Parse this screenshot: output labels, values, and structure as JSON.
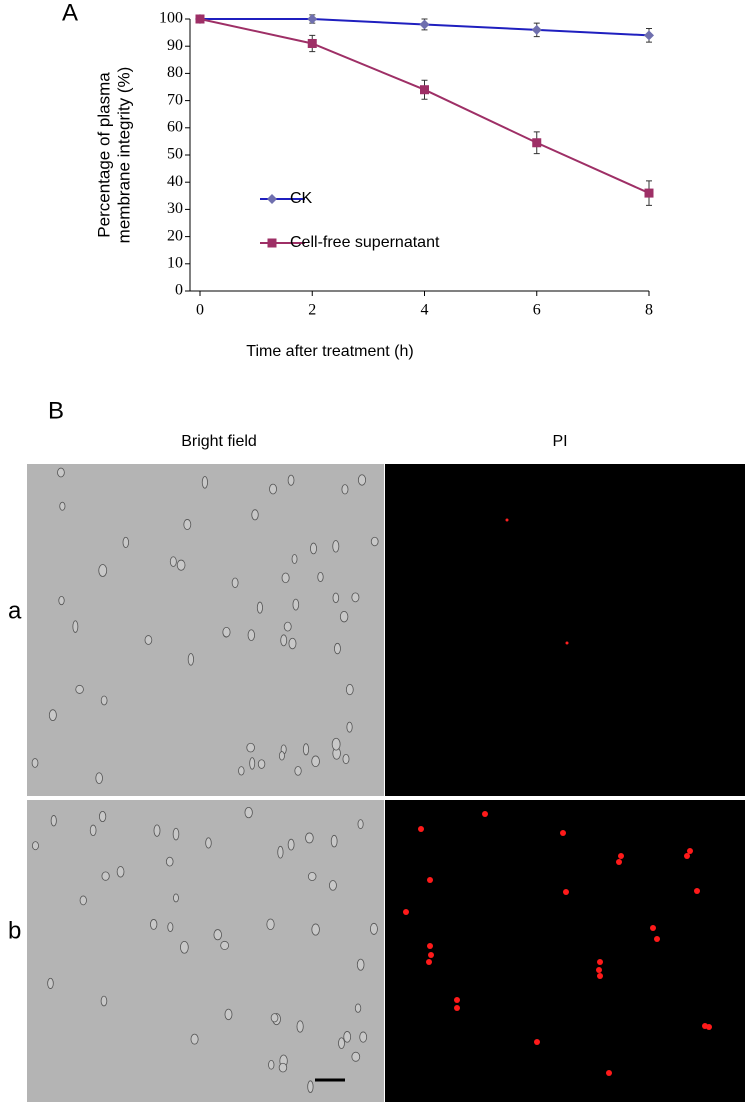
{
  "chart_data": {
    "type": "line",
    "panel_label": "A",
    "ylabel": [
      "Percentage of plasma",
      "membrane integrity (%)"
    ],
    "xlabel": "Time after treatment (h)",
    "x": [
      0,
      2,
      4,
      6,
      8
    ],
    "xlim": [
      0,
      8
    ],
    "xticks": [
      0,
      2,
      4,
      6,
      8
    ],
    "ylim": [
      0,
      100
    ],
    "yticks": [
      0,
      10,
      20,
      30,
      40,
      50,
      60,
      70,
      80,
      90,
      100
    ],
    "series": [
      {
        "name": "CK",
        "color": "#1f1fbf",
        "marker_color": "#6f6fae",
        "marker": "diamond",
        "values": [
          100,
          100,
          98,
          96,
          94
        ],
        "errors": [
          0,
          1.5,
          2,
          2.5,
          2.5
        ]
      },
      {
        "name": "Cell-free supernatant",
        "color": "#9e2f66",
        "marker_color": "#9e2f66",
        "marker": "square",
        "values": [
          100,
          91,
          74,
          54.5,
          36
        ],
        "errors": [
          0,
          3,
          3.5,
          4,
          4.5
        ]
      }
    ]
  },
  "panel_b": {
    "label": "B",
    "columns": [
      "Bright field",
      "PI"
    ],
    "rows": [
      "a",
      "b"
    ]
  }
}
